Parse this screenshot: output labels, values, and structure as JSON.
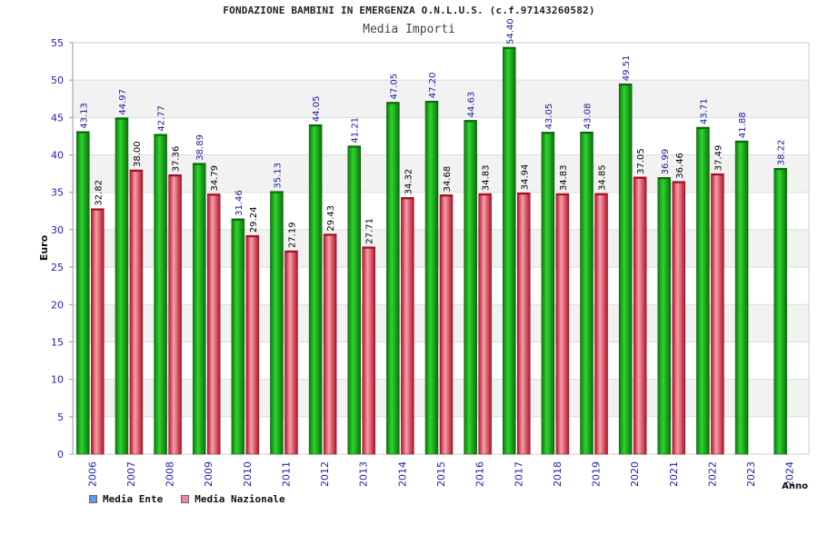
{
  "title": "FONDAZIONE BAMBINI IN EMERGENZA O.N.L.U.S. (c.f.97143260582)",
  "subtitle": "Media Importi",
  "chart_data": {
    "type": "bar",
    "title": "FONDAZIONE BAMBINI IN EMERGENZA O.N.L.U.S. (c.f.97143260582)",
    "subtitle": "Media Importi",
    "xlabel": "Anno",
    "ylabel": "Euro",
    "ylim": [
      0,
      55
    ],
    "yticks": [
      0,
      5,
      10,
      15,
      20,
      25,
      30,
      35,
      40,
      45,
      50,
      55
    ],
    "grid": true,
    "legend_position": "bottom-left",
    "categories": [
      "2006",
      "2007",
      "2008",
      "2009",
      "2010",
      "2011",
      "2012",
      "2013",
      "2014",
      "2015",
      "2016",
      "2017",
      "2018",
      "2019",
      "2020",
      "2021",
      "2022",
      "2023",
      "2024"
    ],
    "series": [
      {
        "name": "Media Ente",
        "color": "#1fb11f",
        "values": [
          43.13,
          44.97,
          42.77,
          38.89,
          31.46,
          35.13,
          44.05,
          41.21,
          47.05,
          47.2,
          44.63,
          54.4,
          43.05,
          43.08,
          49.51,
          36.99,
          43.71,
          41.88,
          38.22
        ],
        "labels": [
          "43.13",
          "44.97",
          "42.77",
          "38.89",
          "31.46",
          "35.13",
          "44.05",
          "41.21",
          "47.05",
          "47.20",
          "44.63",
          "54.40",
          "43.05",
          "43.08",
          "49.51",
          "36.99",
          "43.71",
          "41.88",
          "38.22"
        ]
      },
      {
        "name": "Media Nazionale",
        "color": "#e84a5f",
        "values": [
          32.82,
          38.0,
          37.36,
          34.79,
          29.24,
          27.19,
          29.43,
          27.71,
          34.32,
          34.68,
          34.83,
          34.94,
          34.83,
          34.85,
          37.05,
          36.46,
          37.49,
          null,
          null
        ],
        "labels": [
          "32.82",
          "38.00",
          "37.36",
          "34.79",
          "29.24",
          "27.19",
          "29.43",
          "27.71",
          "34.32",
          "34.68",
          "34.83",
          "34.94",
          "34.83",
          "34.85",
          "37.05",
          "36.46",
          "37.49",
          "",
          ""
        ]
      }
    ]
  },
  "legend": {
    "items": [
      {
        "label": "Media Ente",
        "color": "#5aa0e6"
      },
      {
        "label": "Media Nazionale",
        "color": "#e58aa8"
      }
    ]
  }
}
